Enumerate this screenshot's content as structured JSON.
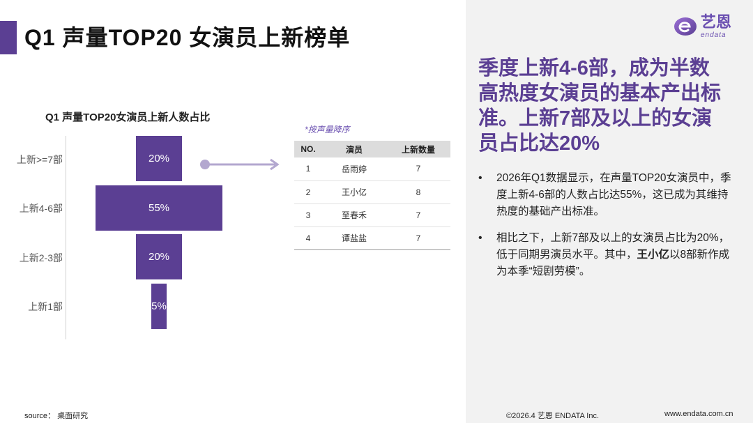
{
  "page_title": "Q1 声量TOP20 女演员上新榜单",
  "chart_data": {
    "type": "bar",
    "orientation": "horizontal",
    "title": "Q1 声量TOP20女演员上新人数占比",
    "categories": [
      "上新>=7部",
      "上新4-6部",
      "上新2-3部",
      "上新1部"
    ],
    "values": [
      20,
      55,
      20,
      5
    ],
    "value_labels": [
      "20%",
      "55%",
      "20%",
      "5%"
    ],
    "unit": "%",
    "color": "#5b3f93",
    "grid": false
  },
  "table": {
    "note": "*按声量降序",
    "headers": [
      "NO.",
      "演员",
      "上新数量"
    ],
    "rows": [
      [
        "1",
        "岳雨婷",
        "7"
      ],
      [
        "2",
        "王小亿",
        "8"
      ],
      [
        "3",
        "至春禾",
        "7"
      ],
      [
        "4",
        "谭盐盐",
        "7"
      ]
    ]
  },
  "source": "source： 桌面研究",
  "logo": {
    "cn": "艺恩",
    "en": "endata"
  },
  "headline": "季度上新4-6部，成为半数高热度女演员的基本产出标准。上新7部及以上的女演员占比达20%",
  "bullets": {
    "b1": "2026年Q1数据显示，在声量TOP20女演员中，季度上新4-6部的人数占比达55%，这已成为其维持热度的基础产出标准。",
    "b2_pre": "相比之下，上新7部及以上的女演员占比为20%，低于同期男演员水平。其中，",
    "b2_bold": "王小亿",
    "b2_post": "以8部新作成为本季“短剧劳模”。"
  },
  "footer": {
    "copyright": "©2026.4  艺恩 ENDATA Inc.",
    "url": "www.endata.com.cn"
  },
  "colors": {
    "accent": "#5b3f93",
    "panel": "#f2f2f2"
  },
  "icons": {
    "arrow": "right-arrow-icon",
    "bullet": "bullet-dot-icon"
  }
}
